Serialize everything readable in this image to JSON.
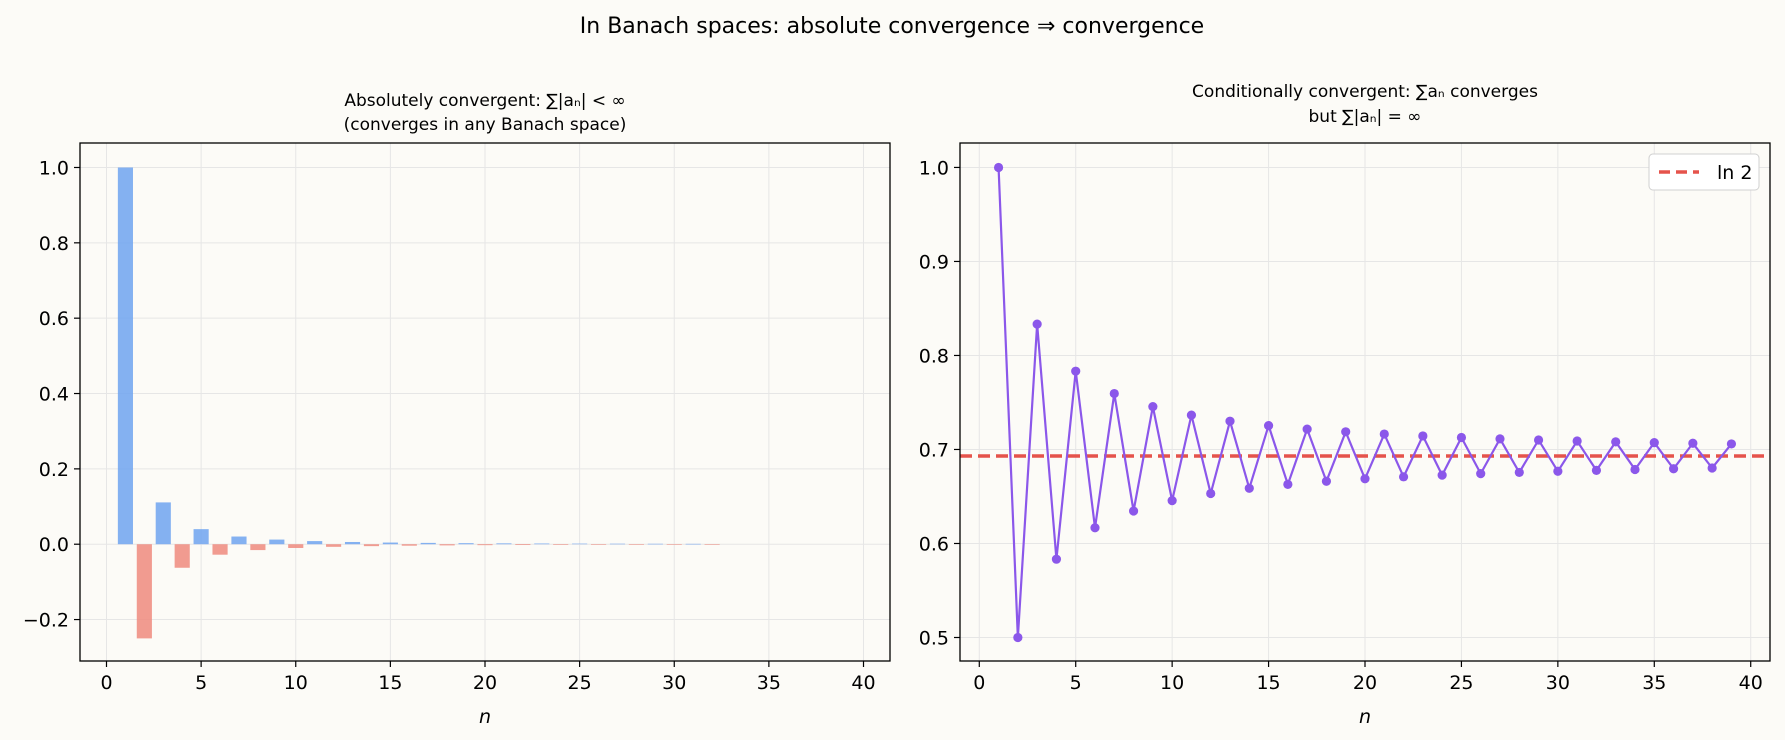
{
  "figure_title": "In Banach spaces: absolute convergence ⇒ convergence",
  "chart_data": [
    {
      "type": "bar",
      "title_line1": "Absolutely convergent: ∑|aₙ| < ∞",
      "title_line2": "(converges in any Banach space)",
      "xlabel": "n",
      "ylabel": "",
      "xlim": [
        -1.4,
        41.4
      ],
      "ylim": [
        -0.31,
        1.065
      ],
      "xticks": [
        0,
        5,
        10,
        15,
        20,
        25,
        30,
        35,
        40
      ],
      "yticks": [
        -0.2,
        0.0,
        0.2,
        0.4,
        0.6,
        0.8,
        1.0
      ],
      "ytick_labels": [
        "−0.2",
        "0.0",
        "0.2",
        "0.4",
        "0.6",
        "0.8",
        "1.0"
      ],
      "grid": true,
      "positive_color": "#6fa3f0",
      "negative_color": "#ee8a7e",
      "series": [
        {
          "x": [
            1,
            2,
            3,
            4,
            5,
            6,
            7,
            8,
            9,
            10,
            11,
            12,
            13,
            14,
            15,
            16,
            17,
            18,
            19,
            20,
            21,
            22,
            23,
            24,
            25,
            26,
            27,
            28,
            29,
            30,
            31,
            32
          ],
          "values": [
            1.0,
            -0.25,
            0.111,
            -0.0625,
            0.04,
            -0.0278,
            0.0204,
            -0.0156,
            0.0123,
            -0.01,
            0.0083,
            -0.0069,
            0.0059,
            -0.0051,
            0.0044,
            -0.0039,
            0.0035,
            -0.0031,
            0.0028,
            -0.0025,
            0.0023,
            -0.0021,
            0.0019,
            -0.0017,
            0.0016,
            -0.0015,
            0.0014,
            -0.0013,
            0.0012,
            -0.0011,
            0.001,
            -0.001
          ]
        }
      ]
    },
    {
      "type": "line",
      "title_line1": "Conditionally convergent: ∑aₙ converges",
      "title_line2": "but ∑|aₙ| = ∞",
      "xlabel": "n",
      "ylabel": "",
      "xlim": [
        -1.0,
        41.0
      ],
      "ylim": [
        0.475,
        1.026
      ],
      "xticks": [
        0,
        5,
        10,
        15,
        20,
        25,
        30,
        35,
        40
      ],
      "yticks": [
        0.5,
        0.6,
        0.7,
        0.8,
        0.9,
        1.0
      ],
      "ytick_labels": [
        "0.5",
        "0.6",
        "0.7",
        "0.8",
        "0.9",
        "1.0"
      ],
      "grid": true,
      "line_color": "#8b57ea",
      "series": [
        {
          "x": [
            1,
            2,
            3,
            4,
            5,
            6,
            7,
            8,
            9,
            10,
            11,
            12,
            13,
            14,
            15,
            16,
            17,
            18,
            19,
            20,
            21,
            22,
            23,
            24,
            25,
            26,
            27,
            28,
            29,
            30,
            31,
            32,
            33,
            34,
            35,
            36,
            37,
            38,
            39
          ],
          "values": [
            1.0,
            0.5,
            0.8333,
            0.5833,
            0.7833,
            0.6167,
            0.7595,
            0.6345,
            0.7456,
            0.6456,
            0.7365,
            0.6532,
            0.7301,
            0.6587,
            0.7254,
            0.6629,
            0.7217,
            0.6662,
            0.7188,
            0.6688,
            0.7164,
            0.6709,
            0.7144,
            0.6727,
            0.7127,
            0.6743,
            0.7113,
            0.6756,
            0.7101,
            0.6768,
            0.709,
            0.6778,
            0.7081,
            0.6787,
            0.7073,
            0.6795,
            0.7066,
            0.6803,
            0.7059
          ]
        }
      ],
      "reference_line": {
        "name": "ln 2",
        "value": 0.6931,
        "color": "#e5534b"
      },
      "legend": {
        "position": "top-right",
        "entries": [
          "ln 2"
        ]
      }
    }
  ]
}
